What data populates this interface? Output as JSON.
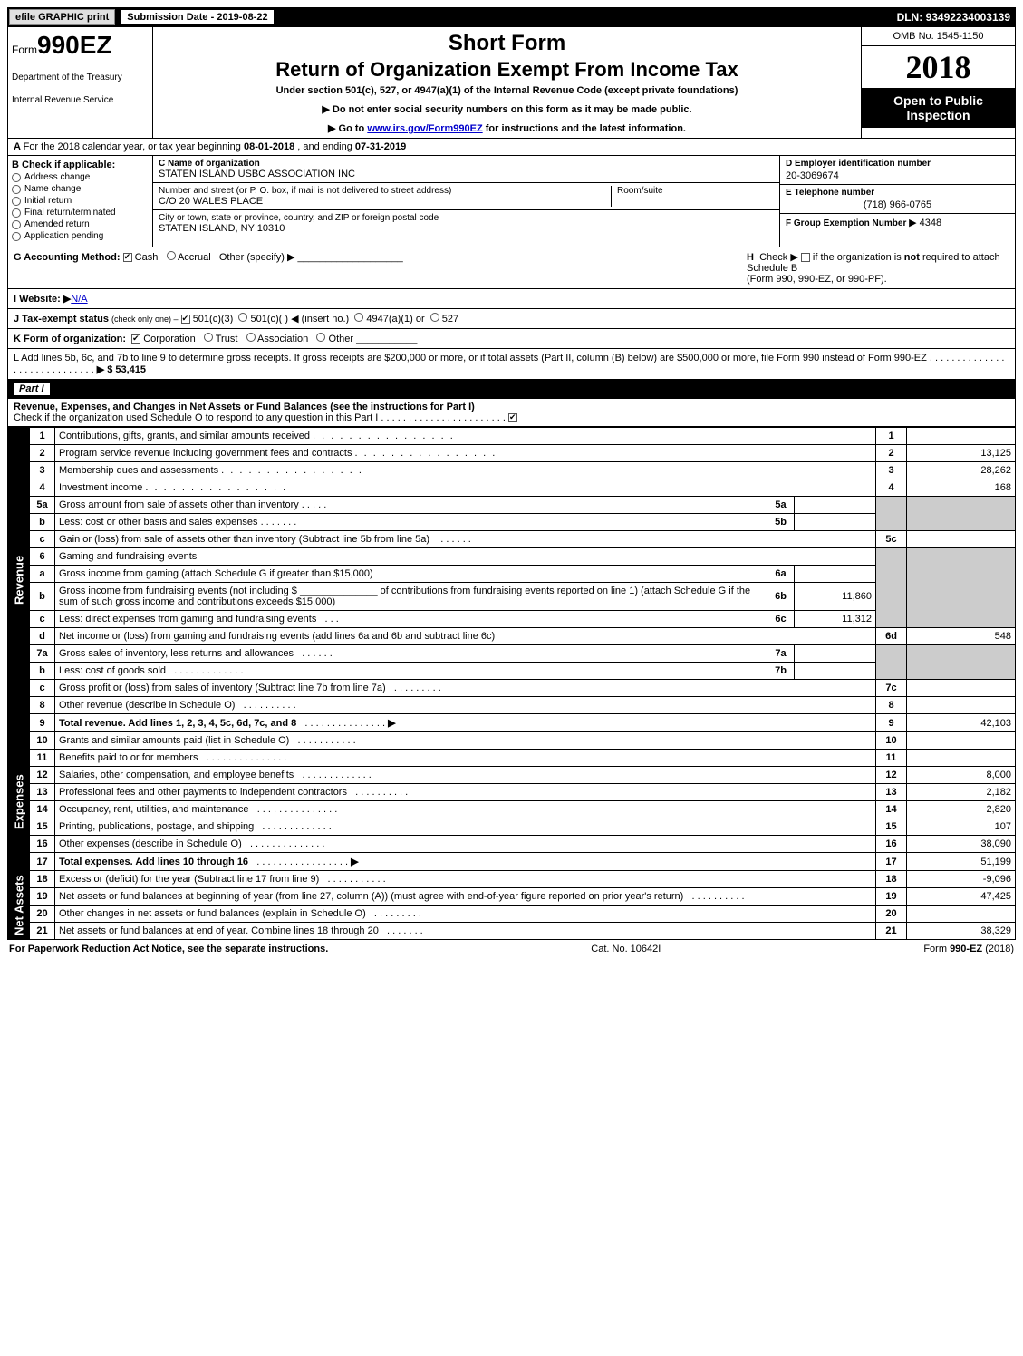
{
  "topbar": {
    "print": "efile GRAPHIC print",
    "subdate_label": "Submission Date - ",
    "subdate": "2019-08-22",
    "dln_label": "DLN: ",
    "dln": "93492234003139"
  },
  "header": {
    "form_prefix": "Form",
    "form_no": "990EZ",
    "dept1": "Department of the Treasury",
    "dept2": "Internal Revenue Service",
    "short_form": "Short Form",
    "title": "Return of Organization Exempt From Income Tax",
    "under": "Under section 501(c), 527, or 4947(a)(1) of the Internal Revenue Code (except private foundations)",
    "line1": "▶ Do not enter social security numbers on this form as it may be made public.",
    "line2_pre": "▶ Go to ",
    "line2_link": "www.irs.gov/Form990EZ",
    "line2_post": " for instructions and the latest information.",
    "omb": "OMB No. 1545-1150",
    "year": "2018",
    "open1": "Open to Public",
    "open2": "Inspection"
  },
  "A": {
    "text_pre": "For the 2018 calendar year, or tax year beginning ",
    "begin": "08-01-2018",
    "mid": " , and ending ",
    "end": "07-31-2019"
  },
  "B": {
    "header": "Check if applicable:",
    "items": [
      "Address change",
      "Name change",
      "Initial return",
      "Final return/terminated",
      "Amended return",
      "Application pending"
    ]
  },
  "C": {
    "name_label": "C Name of organization",
    "name": "STATEN ISLAND USBC ASSOCIATION INC",
    "addr_label": "Number and street (or P. O. box, if mail is not delivered to street address)",
    "addr": "C/O 20 WALES PLACE",
    "room_label": "Room/suite",
    "city_label": "City or town, state or province, country, and ZIP or foreign postal code",
    "city": "STATEN ISLAND, NY  10310"
  },
  "D": {
    "label": "D Employer identification number",
    "val": "20-3069674"
  },
  "E": {
    "label": "E Telephone number",
    "val": "(718) 966-0765"
  },
  "F": {
    "label": "F Group Exemption Number",
    "val": "▶ 4348"
  },
  "G": {
    "label": "G Accounting Method:",
    "cash": "Cash",
    "accrual": "Accrual",
    "other": "Other (specify) ▶"
  },
  "H": {
    "text1": "Check ▶",
    "text2": "if the organization is ",
    "not": "not",
    "text3": " required to attach Schedule B",
    "text4": "(Form 990, 990-EZ, or 990-PF)."
  },
  "I": {
    "label": "I Website: ▶",
    "val": "N/A"
  },
  "J": {
    "label": "J Tax-exempt status",
    "rest": "(check only one) –",
    "opts": [
      "501(c)(3)",
      "501(c)(  ) ◀ (insert no.)",
      "4947(a)(1) or",
      "527"
    ]
  },
  "K": {
    "label": "K Form of organization:",
    "opts": [
      "Corporation",
      "Trust",
      "Association",
      "Other"
    ]
  },
  "L": {
    "text": "L Add lines 5b, 6c, and 7b to line 9 to determine gross receipts. If gross receipts are $200,000 or more, or if total assets (Part II, column (B) below) are $500,000 or more, file Form 990 instead of Form 990-EZ",
    "arrow": "▶ $ 53,415"
  },
  "part1": {
    "label": "Part I",
    "title": "Revenue, Expenses, and Changes in Net Assets or Fund Balances (see the instructions for Part I)",
    "check": "Check if the organization used Schedule O to respond to any question in this Part I"
  },
  "sections": {
    "revenue": "Revenue",
    "expenses": "Expenses",
    "netassets": "Net Assets"
  },
  "lines": {
    "1": {
      "n": "1",
      "d": "Contributions, gifts, grants, and similar amounts received",
      "v": ""
    },
    "2": {
      "n": "2",
      "d": "Program service revenue including government fees and contracts",
      "v": "13,125"
    },
    "3": {
      "n": "3",
      "d": "Membership dues and assessments",
      "v": "28,262"
    },
    "4": {
      "n": "4",
      "d": "Investment income",
      "v": "168"
    },
    "5a": {
      "n": "5a",
      "d": "Gross amount from sale of assets other than inventory",
      "sv": ""
    },
    "5b": {
      "n": "b",
      "sn": "5b",
      "d": "Less: cost or other basis and sales expenses",
      "sv": ""
    },
    "5c": {
      "n": "c",
      "bn": "5c",
      "d": "Gain or (loss) from sale of assets other than inventory (Subtract line 5b from line 5a)",
      "v": ""
    },
    "6": {
      "n": "6",
      "d": "Gaming and fundraising events"
    },
    "6a": {
      "n": "a",
      "sn": "6a",
      "d": "Gross income from gaming (attach Schedule G if greater than $15,000)",
      "sv": ""
    },
    "6b": {
      "n": "b",
      "sn": "6b",
      "d": "Gross income from fundraising events (not including $ ______________ of contributions from fundraising events reported on line 1) (attach Schedule G if the sum of such gross income and contributions exceeds $15,000)",
      "sv": "11,860"
    },
    "6c": {
      "n": "c",
      "sn": "6c",
      "d": "Less: direct expenses from gaming and fundraising events",
      "sv": "11,312"
    },
    "6d": {
      "n": "d",
      "bn": "6d",
      "d": "Net income or (loss) from gaming and fundraising events (add lines 6a and 6b and subtract line 6c)",
      "v": "548"
    },
    "7a": {
      "n": "7a",
      "sn": "7a",
      "d": "Gross sales of inventory, less returns and allowances",
      "sv": ""
    },
    "7b": {
      "n": "b",
      "sn": "7b",
      "d": "Less: cost of goods sold",
      "sv": ""
    },
    "7c": {
      "n": "c",
      "bn": "7c",
      "d": "Gross profit or (loss) from sales of inventory (Subtract line 7b from line 7a)",
      "v": ""
    },
    "8": {
      "n": "8",
      "d": "Other revenue (describe in Schedule O)",
      "v": ""
    },
    "9": {
      "n": "9",
      "d": "Total revenue. Add lines 1, 2, 3, 4, 5c, 6d, 7c, and 8",
      "v": "42,103",
      "bold": true,
      "arrow": true
    },
    "10": {
      "n": "10",
      "d": "Grants and similar amounts paid (list in Schedule O)",
      "v": ""
    },
    "11": {
      "n": "11",
      "d": "Benefits paid to or for members",
      "v": ""
    },
    "12": {
      "n": "12",
      "d": "Salaries, other compensation, and employee benefits",
      "v": "8,000"
    },
    "13": {
      "n": "13",
      "d": "Professional fees and other payments to independent contractors",
      "v": "2,182"
    },
    "14": {
      "n": "14",
      "d": "Occupancy, rent, utilities, and maintenance",
      "v": "2,820"
    },
    "15": {
      "n": "15",
      "d": "Printing, publications, postage, and shipping",
      "v": "107"
    },
    "16": {
      "n": "16",
      "d": "Other expenses (describe in Schedule O)",
      "v": "38,090"
    },
    "17": {
      "n": "17",
      "d": "Total expenses. Add lines 10 through 16",
      "v": "51,199",
      "bold": true,
      "arrow": true
    },
    "18": {
      "n": "18",
      "d": "Excess or (deficit) for the year (Subtract line 17 from line 9)",
      "v": "-9,096"
    },
    "19": {
      "n": "19",
      "d": "Net assets or fund balances at beginning of year (from line 27, column (A)) (must agree with end-of-year figure reported on prior year's return)",
      "v": "47,425"
    },
    "20": {
      "n": "20",
      "d": "Other changes in net assets or fund balances (explain in Schedule O)",
      "v": ""
    },
    "21": {
      "n": "21",
      "d": "Net assets or fund balances at end of year. Combine lines 18 through 20",
      "v": "38,329"
    }
  },
  "footer": {
    "left": "For Paperwork Reduction Act Notice, see the separate instructions.",
    "mid": "Cat. No. 10642I",
    "right": "Form 990-EZ (2018)"
  }
}
